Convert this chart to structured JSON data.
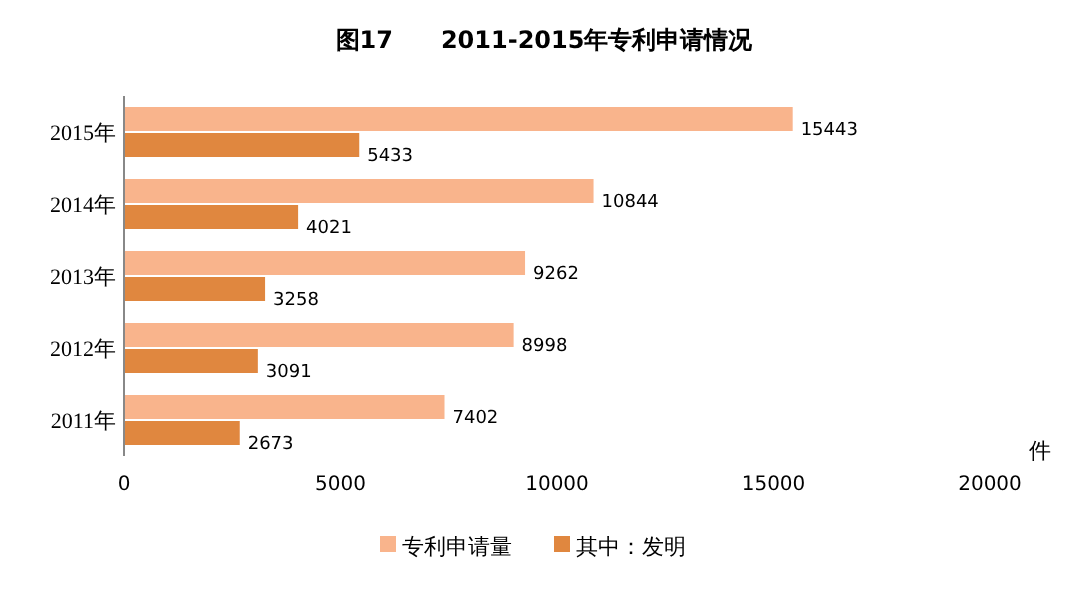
{
  "chart_data": {
    "type": "bar",
    "orientation": "horizontal",
    "title": "图17　　2011-2015年专利申请情况",
    "xlabel": "件",
    "categories": [
      "2015年",
      "2014年",
      "2013年",
      "2012年",
      "2011年"
    ],
    "series": [
      {
        "name": "专利申请量",
        "color": "#f9b48c",
        "values": [
          15443,
          10844,
          9262,
          8998,
          7402
        ]
      },
      {
        "name": "其中：发明",
        "color": "#e0873f",
        "values": [
          5433,
          4021,
          3258,
          3091,
          2673
        ]
      }
    ],
    "xlim": [
      0,
      20000
    ],
    "xticks": [
      0,
      5000,
      10000,
      15000,
      20000
    ],
    "data_labels": true,
    "grid": false,
    "legend": "bottom"
  }
}
